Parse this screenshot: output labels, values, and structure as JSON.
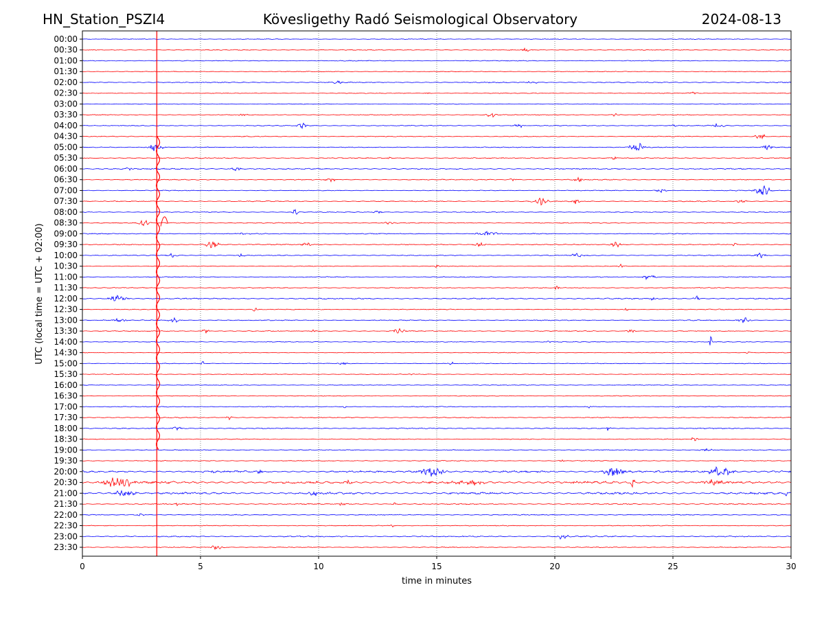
{
  "header": {
    "station": "HN_Station_PSZI4",
    "observatory": "Kövesligethy Radó Seismological Observatory",
    "date": "2024-08-13"
  },
  "chart_data": {
    "type": "line",
    "title": "Kövesligethy Radó Seismological Observatory",
    "subtitle_left": "HN_Station_PSZI4",
    "subtitle_right": "2024-08-13",
    "xlabel": "time in minutes",
    "ylabel": "UTC (local time = UTC + 02:00)",
    "xlim": [
      0,
      30
    ],
    "x_ticks": [
      0,
      5,
      10,
      15,
      20,
      25,
      30
    ],
    "x_tick_labels": [
      "0",
      "5",
      "10",
      "15",
      "20",
      "25",
      "30"
    ],
    "grid": "vertical dotted at x ticks",
    "colors": {
      "even_rows": "#0000ff",
      "odd_rows": "#ff0000"
    },
    "rows": [
      {
        "label": "00:00",
        "noise": 0.6,
        "events": []
      },
      {
        "label": "00:30",
        "noise": 0.7,
        "events": [
          [
            18.8,
            0.5,
            2.0
          ]
        ]
      },
      {
        "label": "01:00",
        "noise": 0.7,
        "events": []
      },
      {
        "label": "01:30",
        "noise": 0.6,
        "events": []
      },
      {
        "label": "02:00",
        "noise": 0.8,
        "events": [
          [
            10.8,
            0.6,
            2.0
          ],
          [
            19.0,
            0.6,
            1.5
          ]
        ]
      },
      {
        "label": "02:30",
        "noise": 0.6,
        "events": [
          [
            25.8,
            0.5,
            2.0
          ],
          [
            14.6,
            0.3,
            1.2
          ]
        ]
      },
      {
        "label": "03:00",
        "noise": 0.6,
        "events": []
      },
      {
        "label": "03:30",
        "noise": 0.7,
        "events": [
          [
            6.8,
            0.5,
            1.5
          ],
          [
            17.3,
            0.5,
            2.5
          ],
          [
            22.6,
            0.4,
            2.0
          ]
        ]
      },
      {
        "label": "04:00",
        "noise": 0.7,
        "events": [
          [
            9.3,
            0.5,
            3.0
          ],
          [
            18.5,
            0.6,
            2.5
          ],
          [
            26.9,
            0.6,
            2.5
          ],
          [
            25.0,
            0.3,
            1.5
          ]
        ]
      },
      {
        "label": "04:30",
        "noise": 0.7,
        "events": [
          [
            28.7,
            0.5,
            3.0
          ]
        ]
      },
      {
        "label": "05:00",
        "noise": 0.7,
        "events": [
          [
            3.1,
            0.7,
            4.5
          ],
          [
            23.5,
            0.8,
            5.0
          ],
          [
            29.0,
            0.5,
            3.0
          ]
        ]
      },
      {
        "label": "05:30",
        "noise": 0.8,
        "events": [
          [
            13.0,
            0.3,
            1.5
          ],
          [
            22.5,
            0.3,
            1.5
          ]
        ]
      },
      {
        "label": "06:00",
        "noise": 1.0,
        "events": [
          [
            6.5,
            0.5,
            2.5
          ],
          [
            2.0,
            0.3,
            2.0
          ]
        ]
      },
      {
        "label": "06:30",
        "noise": 0.8,
        "events": [
          [
            10.5,
            0.5,
            2.5
          ],
          [
            18.2,
            0.5,
            1.8
          ],
          [
            21.0,
            0.4,
            2.5
          ]
        ]
      },
      {
        "label": "07:00",
        "noise": 0.7,
        "events": [
          [
            24.5,
            0.5,
            2.0
          ],
          [
            28.8,
            0.7,
            6.0
          ]
        ]
      },
      {
        "label": "07:30",
        "noise": 0.8,
        "events": [
          [
            19.4,
            0.7,
            4.0
          ],
          [
            20.9,
            0.3,
            4.0
          ],
          [
            27.9,
            0.5,
            2.0
          ]
        ]
      },
      {
        "label": "08:00",
        "noise": 0.7,
        "events": [
          [
            9.0,
            0.3,
            3.0
          ],
          [
            12.5,
            0.4,
            1.5
          ]
        ]
      },
      {
        "label": "08:30",
        "noise": 0.8,
        "events": [
          [
            2.6,
            0.6,
            3.0
          ],
          [
            13.0,
            0.6,
            1.5
          ]
        ]
      },
      {
        "label": "09:00",
        "noise": 0.8,
        "events": [
          [
            17.2,
            1.2,
            2.5
          ],
          [
            6.8,
            0.4,
            1.5
          ]
        ]
      },
      {
        "label": "09:30",
        "noise": 0.8,
        "events": [
          [
            5.5,
            0.7,
            4.0
          ],
          [
            9.5,
            0.6,
            2.0
          ],
          [
            16.8,
            0.6,
            2.0
          ],
          [
            22.6,
            0.5,
            3.0
          ],
          [
            27.6,
            0.3,
            2.0
          ]
        ]
      },
      {
        "label": "10:00",
        "noise": 0.7,
        "events": [
          [
            3.8,
            0.5,
            2.5
          ],
          [
            6.7,
            0.3,
            3.0
          ],
          [
            21.0,
            0.7,
            2.5
          ],
          [
            28.7,
            0.6,
            2.5
          ]
        ]
      },
      {
        "label": "10:30",
        "noise": 0.6,
        "events": [
          [
            15.0,
            0.3,
            2.0
          ],
          [
            22.8,
            0.3,
            2.0
          ]
        ]
      },
      {
        "label": "11:00",
        "noise": 0.8,
        "events": [
          [
            24.0,
            0.6,
            3.5
          ]
        ]
      },
      {
        "label": "11:30",
        "noise": 0.7,
        "events": [
          [
            20.1,
            0.2,
            3.0
          ]
        ]
      },
      {
        "label": "12:00",
        "noise": 1.0,
        "events": [
          [
            1.5,
            0.9,
            3.0
          ],
          [
            26.0,
            0.3,
            3.0
          ],
          [
            24.2,
            0.3,
            2.0
          ]
        ]
      },
      {
        "label": "12:30",
        "noise": 0.7,
        "events": [
          [
            7.3,
            0.3,
            2.0
          ],
          [
            23.0,
            0.3,
            2.0
          ]
        ]
      },
      {
        "label": "13:00",
        "noise": 0.8,
        "events": [
          [
            1.6,
            0.5,
            2.5
          ],
          [
            3.9,
            0.6,
            2.5
          ],
          [
            28.0,
            0.6,
            3.5
          ]
        ]
      },
      {
        "label": "13:30",
        "noise": 0.7,
        "events": [
          [
            5.2,
            0.4,
            2.0
          ],
          [
            9.8,
            0.2,
            3.0
          ],
          [
            13.4,
            0.6,
            2.5
          ],
          [
            23.2,
            0.5,
            2.0
          ]
        ]
      },
      {
        "label": "14:00",
        "noise": 0.6,
        "events": [
          [
            26.6,
            0.1,
            10.0
          ],
          [
            19.8,
            0.3,
            1.5
          ]
        ]
      },
      {
        "label": "14:30",
        "noise": 0.6,
        "events": [
          [
            28.2,
            0.2,
            2.0
          ]
        ]
      },
      {
        "label": "15:00",
        "noise": 0.6,
        "events": [
          [
            5.1,
            0.2,
            2.0
          ],
          [
            11.0,
            0.6,
            1.5
          ],
          [
            15.6,
            0.3,
            1.5
          ]
        ]
      },
      {
        "label": "15:30",
        "noise": 0.6,
        "events": [
          [
            14.0,
            0.2,
            1.5
          ]
        ]
      },
      {
        "label": "16:00",
        "noise": 0.6,
        "events": []
      },
      {
        "label": "16:30",
        "noise": 0.6,
        "events": []
      },
      {
        "label": "17:00",
        "noise": 0.7,
        "events": [
          [
            11.1,
            0.2,
            2.0
          ],
          [
            21.5,
            0.3,
            1.5
          ],
          [
            25.2,
            0.3,
            1.5
          ]
        ]
      },
      {
        "label": "17:30",
        "noise": 0.8,
        "events": [
          [
            6.2,
            0.3,
            2.0
          ]
        ]
      },
      {
        "label": "18:00",
        "noise": 0.9,
        "events": [
          [
            4.0,
            0.4,
            2.5
          ],
          [
            22.3,
            0.2,
            4.0
          ]
        ]
      },
      {
        "label": "18:30",
        "noise": 0.7,
        "events": [
          [
            25.9,
            0.4,
            2.0
          ]
        ]
      },
      {
        "label": "19:00",
        "noise": 0.7,
        "events": [
          [
            26.5,
            0.8,
            1.5
          ]
        ]
      },
      {
        "label": "19:30",
        "noise": 0.7,
        "events": [
          [
            20.3,
            0.3,
            1.5
          ]
        ]
      },
      {
        "label": "20:00",
        "noise": 1.6,
        "events": [
          [
            14.8,
            1.2,
            5.0
          ],
          [
            22.5,
            1.2,
            5.0
          ],
          [
            27.0,
            1.2,
            5.0
          ],
          [
            5.5,
            0.4,
            2.0
          ],
          [
            7.5,
            0.4,
            2.0
          ]
        ]
      },
      {
        "label": "20:30",
        "noise": 2.0,
        "events": [
          [
            1.5,
            1.5,
            5.5
          ],
          [
            16.5,
            1.2,
            3.5
          ],
          [
            26.7,
            1.0,
            4.0
          ],
          [
            23.3,
            0.2,
            5.0
          ],
          [
            11.2,
            0.4,
            3.5
          ]
        ]
      },
      {
        "label": "21:00",
        "noise": 1.7,
        "events": [
          [
            1.8,
            1.0,
            3.5
          ],
          [
            9.8,
            0.5,
            3.0
          ],
          [
            29.8,
            0.1,
            3.0
          ]
        ]
      },
      {
        "label": "21:30",
        "noise": 0.9,
        "events": [
          [
            4.0,
            0.3,
            2.0
          ],
          [
            11.0,
            0.3,
            2.0
          ],
          [
            13.2,
            0.3,
            2.0
          ]
        ]
      },
      {
        "label": "22:00",
        "noise": 0.8,
        "events": [
          [
            2.5,
            0.4,
            1.5
          ]
        ]
      },
      {
        "label": "22:30",
        "noise": 0.7,
        "events": [
          [
            13.1,
            0.1,
            3.0
          ]
        ]
      },
      {
        "label": "23:00",
        "noise": 1.0,
        "events": [
          [
            20.3,
            0.6,
            3.0
          ]
        ]
      },
      {
        "label": "23:30",
        "noise": 0.7,
        "events": [
          [
            5.7,
            0.6,
            2.5
          ]
        ]
      }
    ],
    "main_spike": {
      "minute": 3.2,
      "from_row": "04:30",
      "to_row": "19:00",
      "color": "#ff0000",
      "marker_line_from_row": "00:00",
      "marker_line_to_row": "23:30",
      "marker_minute": 3.15
    }
  }
}
